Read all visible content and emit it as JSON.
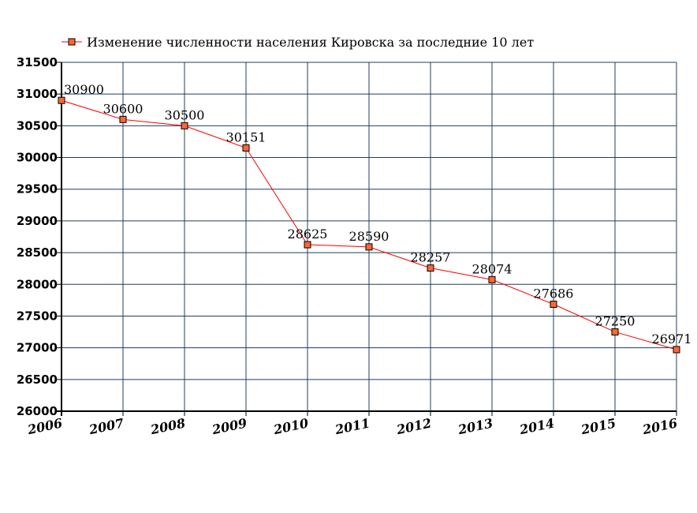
{
  "chart_data": {
    "type": "line",
    "title": "",
    "xlabel": "",
    "ylabel": "",
    "x": [
      "2006",
      "2007",
      "2008",
      "2009",
      "2010",
      "2011",
      "2012",
      "2013",
      "2014",
      "2015",
      "2016"
    ],
    "series": [
      {
        "name": "Изменение численности населения Кировска за последние 10 лет",
        "values": [
          30900,
          30600,
          30500,
          30151,
          28625,
          28590,
          28257,
          28074,
          27686,
          27250,
          26971
        ],
        "color": "#ff0000",
        "marker_fill": "#ff6633",
        "marker": "square"
      }
    ],
    "ylim": [
      26000,
      31500
    ],
    "yticks": [
      26000,
      26500,
      27000,
      27500,
      28000,
      28500,
      29000,
      29500,
      30000,
      30500,
      31000,
      31500
    ],
    "grid": true,
    "grid_color": "#1f3f5f",
    "legend_position": "top-left",
    "data_labels": true
  }
}
